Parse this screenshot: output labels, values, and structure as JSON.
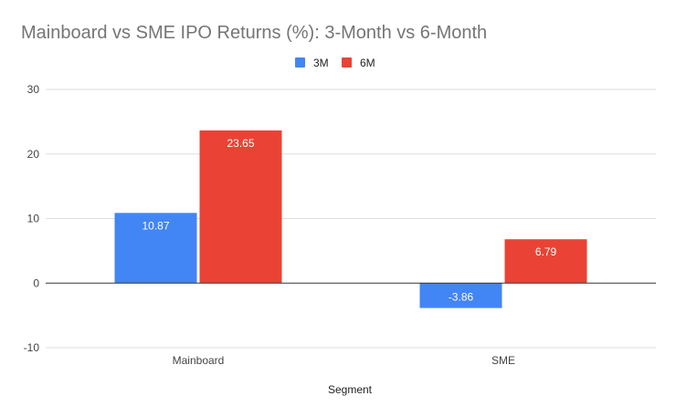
{
  "chart_data": {
    "type": "bar",
    "title": "Mainboard vs SME IPO Returns (%): 3-Month vs 6-Month",
    "xlabel": "Segment",
    "ylabel": "",
    "categories": [
      "Mainboard",
      "SME"
    ],
    "series": [
      {
        "name": "3M",
        "color": "#4285f4",
        "values": [
          10.87,
          -3.86
        ]
      },
      {
        "name": "6M",
        "color": "#ea4335",
        "values": [
          23.65,
          6.79
        ]
      }
    ],
    "ylim": [
      -10,
      30
    ],
    "yticks": [
      -10,
      0,
      10,
      20,
      30
    ],
    "grid": true,
    "legend_position": "top-center",
    "data_labels": true
  }
}
